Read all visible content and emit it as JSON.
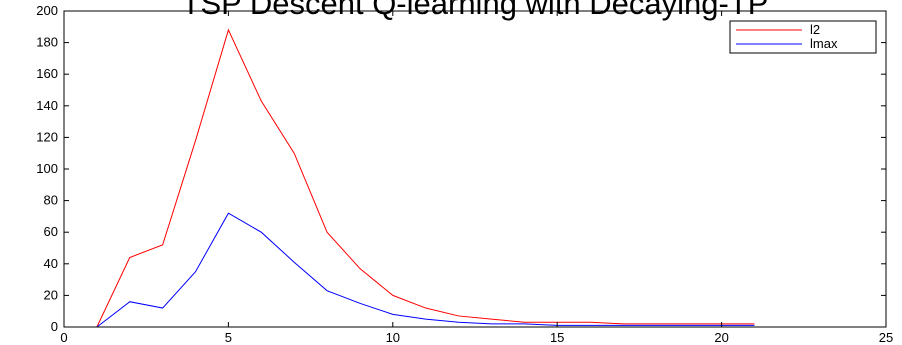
{
  "chart_data": {
    "type": "line",
    "title": "TSP Descent Q-learning with Decaying-TP",
    "xlabel": "",
    "ylabel": "",
    "xlim": [
      0,
      25
    ],
    "ylim": [
      0,
      200
    ],
    "x_ticks": [
      0,
      5,
      10,
      15,
      20,
      25
    ],
    "y_ticks": [
      0,
      20,
      40,
      60,
      80,
      100,
      120,
      140,
      160,
      180,
      200
    ],
    "grid": false,
    "legend_position": "top-right",
    "x": [
      1,
      2,
      3,
      4,
      5,
      6,
      7,
      8,
      9,
      10,
      11,
      12,
      13,
      14,
      15,
      16,
      17,
      18,
      19,
      20,
      21
    ],
    "series": [
      {
        "name": "l2",
        "color": "#ff0000",
        "values": [
          0,
          44,
          52,
          118,
          188,
          143,
          110,
          60,
          37,
          20,
          12,
          7,
          5,
          3,
          3,
          3,
          2,
          2,
          2,
          2,
          2
        ]
      },
      {
        "name": "lmax",
        "color": "#0000ff",
        "values": [
          0,
          16,
          12,
          35,
          72,
          60,
          41,
          23,
          15,
          8,
          5,
          3,
          2,
          2,
          1,
          1,
          1,
          1,
          1,
          1,
          1
        ]
      }
    ]
  }
}
